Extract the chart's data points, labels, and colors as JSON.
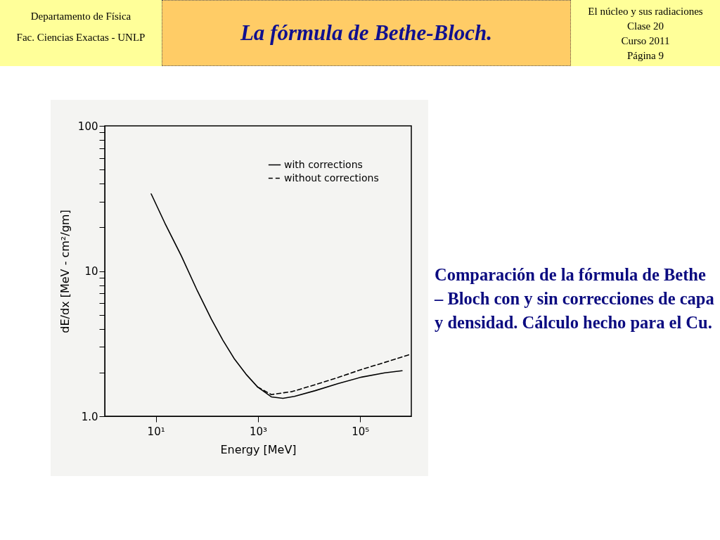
{
  "chart_data": {
    "type": "line",
    "title": "La fórmula de Bethe-Bloch.",
    "xlabel": "Energy [MeV]",
    "ylabel": "dE/dx [MeV - cm²/gm]",
    "annotations": [
      "Departamento de Física",
      "Fac. Ciencias Exactas - UNLP",
      "El núcleo y sus radiaciones",
      "Clase 20",
      "Curso 2011",
      "Página 9",
      "Comparación de la fórmula de Bethe – Bloch con y sin correcciones de capa y densidad. Cálculo hecho para el Cu."
    ],
    "log": "xy",
    "xlim": [
      1,
      1000000
    ],
    "ylim": [
      1,
      100
    ],
    "xticks": [
      {
        "value": 10,
        "label": "10¹"
      },
      {
        "value": 1000,
        "label": "10³"
      },
      {
        "value": 100000,
        "label": "10⁵"
      }
    ],
    "yticks": [
      {
        "value": 1,
        "label": "1.0"
      },
      {
        "value": 2,
        "label": null
      },
      {
        "value": 3,
        "label": null
      },
      {
        "value": 4,
        "label": null
      },
      {
        "value": 5,
        "label": null
      },
      {
        "value": 6,
        "label": null
      },
      {
        "value": 7,
        "label": null
      },
      {
        "value": 8,
        "label": null
      },
      {
        "value": 9,
        "label": null
      },
      10,
      {
        "value": 20,
        "label": null
      },
      {
        "value": 30,
        "label": null
      },
      {
        "value": 40,
        "label": null
      },
      {
        "value": 50,
        "label": null
      },
      {
        "value": 60,
        "label": null
      },
      {
        "value": 70,
        "label": null
      },
      {
        "value": 80,
        "label": null
      },
      {
        "value": 90,
        "label": null
      },
      100
    ],
    "legend": "top right",
    "series": [
      {
        "name": "with corrections",
        "color": "#000000",
        "line_style": "solid",
        "x": [
          8.1,
          15,
          31.6,
          65,
          122,
          205,
          345,
          580,
          980,
          1820,
          3070,
          5150,
          13100,
          37000,
          106000,
          302000,
          660000
        ],
        "values": [
          34,
          21.4,
          12.7,
          7.3,
          4.67,
          3.34,
          2.48,
          1.95,
          1.59,
          1.36,
          1.33,
          1.37,
          1.5,
          1.68,
          1.86,
          1.99,
          2.06
        ]
      },
      {
        "name": "without corrections",
        "color": "#000000",
        "line_style": "dashed",
        "x": [
          980,
          1820,
          4670,
          13100,
          37000,
          106000,
          302000,
          955000
        ],
        "values": [
          1.59,
          1.41,
          1.48,
          1.65,
          1.85,
          2.1,
          2.35,
          2.67
        ]
      }
    ]
  }
}
